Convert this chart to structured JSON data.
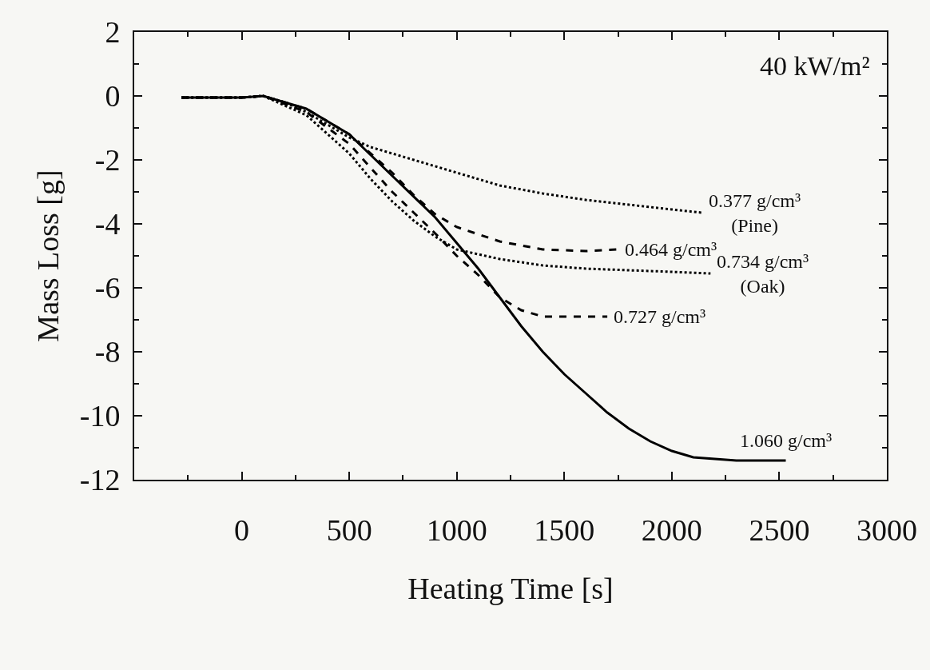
{
  "chart_data": {
    "type": "line",
    "xlabel": "Heating Time [s]",
    "ylabel": "Mass Loss [g]",
    "annotations": [
      "40 kW/m²"
    ],
    "xlim": [
      -500,
      3000
    ],
    "xticks": [
      0,
      500,
      1000,
      1500,
      2000,
      2500,
      3000
    ],
    "ylim": [
      -12,
      2
    ],
    "yticks": [
      -12,
      -10,
      -8,
      -6,
      -4,
      -2,
      0,
      2
    ],
    "grid": false,
    "legend": false,
    "series": [
      {
        "name": "0.377 g/cm³\n(Pine)",
        "color": "#000000",
        "line_style": "dotted",
        "x": [
          -280,
          0,
          100,
          200,
          300,
          400,
          500,
          600,
          800,
          1000,
          1200,
          1400,
          1600,
          1800,
          2000,
          2140
        ],
        "values": [
          -0.05,
          -0.05,
          0,
          -0.2,
          -0.5,
          -0.9,
          -1.3,
          -1.6,
          -2.0,
          -2.4,
          -2.8,
          -3.05,
          -3.25,
          -3.4,
          -3.55,
          -3.65
        ]
      },
      {
        "name": "0.464 g/cm³",
        "color": "#000000",
        "line_style": "dashed",
        "x": [
          -280,
          0,
          100,
          300,
          500,
          700,
          800,
          900,
          1000,
          1200,
          1400,
          1600,
          1750
        ],
        "values": [
          -0.05,
          -0.05,
          0,
          -0.4,
          -1.2,
          -2.4,
          -3.1,
          -3.7,
          -4.1,
          -4.55,
          -4.8,
          -4.85,
          -4.8
        ]
      },
      {
        "name": "0.734 g/cm³\n(Oak)",
        "color": "#000000",
        "line_style": "dotted",
        "x": [
          -280,
          0,
          100,
          300,
          400,
          500,
          600,
          700,
          800,
          900,
          1000,
          1200,
          1400,
          1600,
          1800,
          2000,
          2180
        ],
        "values": [
          -0.05,
          -0.05,
          0,
          -0.6,
          -1.2,
          -1.8,
          -2.6,
          -3.3,
          -3.9,
          -4.4,
          -4.8,
          -5.1,
          -5.3,
          -5.4,
          -5.45,
          -5.5,
          -5.55
        ]
      },
      {
        "name": "0.727 g/cm³",
        "color": "#000000",
        "line_style": "dashed",
        "x": [
          -280,
          0,
          100,
          300,
          500,
          700,
          900,
          1000,
          1100,
          1200,
          1300,
          1400,
          1550,
          1700
        ],
        "values": [
          -0.05,
          -0.05,
          0,
          -0.5,
          -1.5,
          -3.0,
          -4.3,
          -5.0,
          -5.6,
          -6.3,
          -6.7,
          -6.9,
          -6.9,
          -6.9
        ]
      },
      {
        "name": "1.060 g/cm³",
        "color": "#000000",
        "line_style": "solid",
        "x": [
          -280,
          0,
          100,
          300,
          500,
          700,
          900,
          1000,
          1100,
          1200,
          1300,
          1400,
          1500,
          1600,
          1700,
          1800,
          1900,
          2000,
          2100,
          2200,
          2300,
          2530
        ],
        "values": [
          -0.05,
          -0.05,
          0,
          -0.4,
          -1.2,
          -2.5,
          -3.8,
          -4.6,
          -5.4,
          -6.3,
          -7.2,
          -8.0,
          -8.7,
          -9.3,
          -9.9,
          -10.4,
          -10.8,
          -11.1,
          -11.3,
          -11.35,
          -11.4,
          -11.4
        ]
      }
    ]
  }
}
